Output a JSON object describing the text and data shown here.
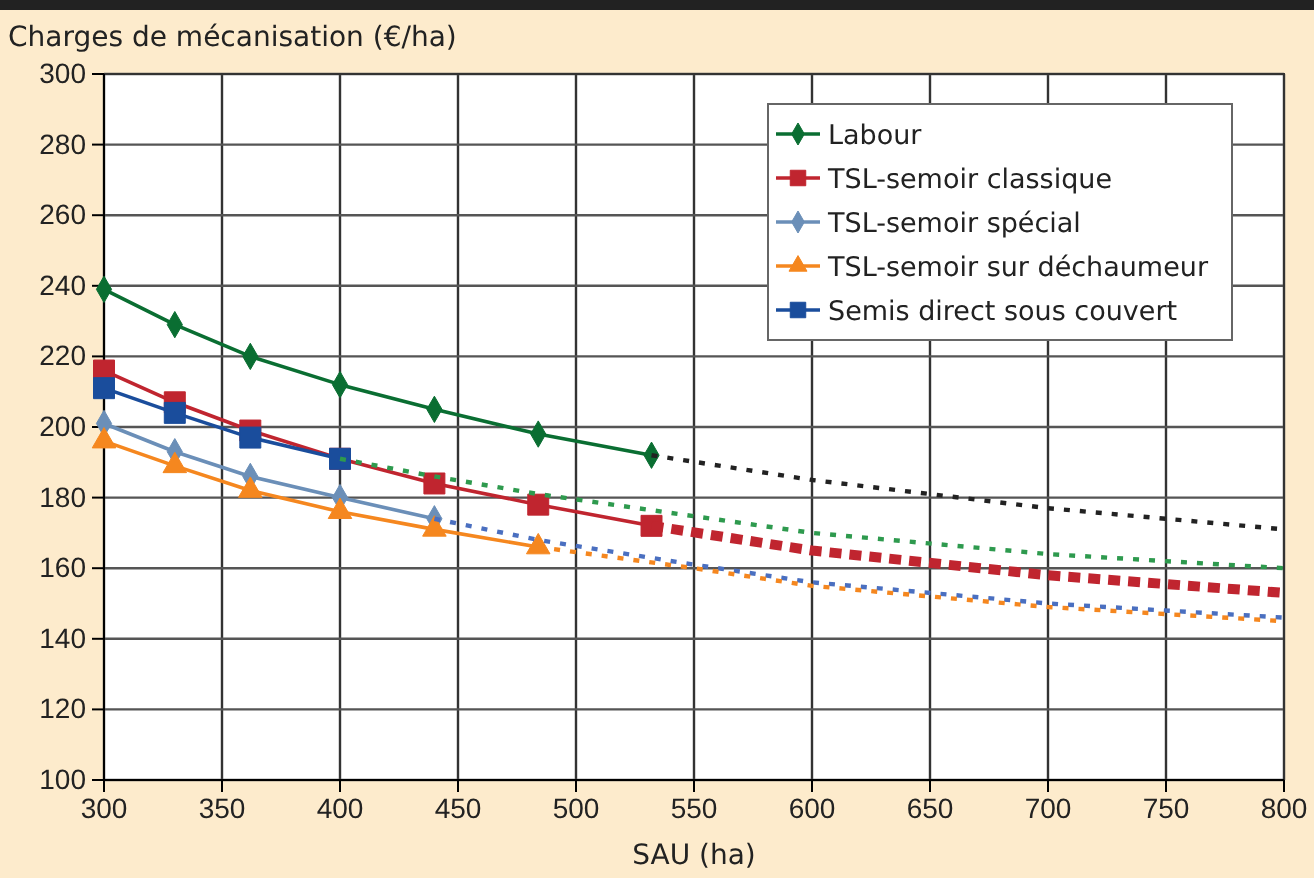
{
  "chart_data": {
    "type": "line",
    "title": "Charges de mécanisation (€/ha)",
    "xlabel": "SAU (ha)",
    "xlim": [
      300,
      800
    ],
    "ylim": [
      100,
      300
    ],
    "xticks": [
      300,
      350,
      400,
      450,
      500,
      550,
      600,
      650,
      700,
      750,
      800
    ],
    "yticks": [
      100,
      120,
      140,
      160,
      180,
      200,
      220,
      240,
      260,
      280,
      300
    ],
    "grid": true,
    "legend": "top right",
    "series": [
      {
        "name": "Labour",
        "color": "#0a6e32",
        "marker": "diamond",
        "line_style": "solid",
        "x": [
          300,
          330,
          362,
          400,
          440,
          484,
          532
        ],
        "values": [
          239,
          229,
          220,
          212,
          205,
          198,
          192
        ]
      },
      {
        "name": "TSL-semoir classique",
        "color": "#c0252f",
        "marker": "square",
        "line_style": "solid",
        "x": [
          300,
          330,
          362,
          400,
          440,
          484,
          532
        ],
        "values": [
          216,
          207,
          199,
          191,
          184,
          178,
          172
        ]
      },
      {
        "name": "TSL-semoir spécial",
        "color": "#6b8fb8",
        "marker": "diamond",
        "line_style": "solid",
        "x": [
          300,
          330,
          362,
          400,
          440
        ],
        "values": [
          201,
          193,
          186,
          180,
          174
        ]
      },
      {
        "name": "TSL-semoir sur déchaumeur",
        "color": "#f5871f",
        "marker": "triangle",
        "line_style": "solid",
        "x": [
          300,
          330,
          362,
          400,
          440,
          484
        ],
        "values": [
          196,
          189,
          182,
          176,
          171,
          166
        ]
      },
      {
        "name": "Semis direct sous couvert",
        "color": "#1a4d9c",
        "marker": "square",
        "line_style": "solid",
        "x": [
          300,
          330,
          362,
          400
        ],
        "values": [
          211,
          204,
          197,
          191
        ]
      },
      {
        "color": "#222222",
        "marker": "none",
        "line_style": "dotted",
        "x": [
          532,
          600,
          700,
          800
        ],
        "values": [
          192,
          185,
          177,
          171
        ]
      },
      {
        "color": "#2e9a4e",
        "marker": "none",
        "line_style": "dotted",
        "x": [
          400,
          440,
          484,
          600,
          700,
          800
        ],
        "values": [
          191,
          186,
          181,
          170,
          164,
          160
        ]
      },
      {
        "color": "#c0252f",
        "marker": "none",
        "line_style": "dotted-thick",
        "x": [
          532,
          600,
          700,
          800
        ],
        "values": [
          172,
          165,
          158,
          153
        ]
      },
      {
        "color": "#4a6fc0",
        "marker": "none",
        "line_style": "dotted",
        "x": [
          440,
          484,
          550,
          600,
          700,
          800
        ],
        "values": [
          174,
          168,
          161,
          156,
          150,
          146
        ]
      },
      {
        "color": "#f5871f",
        "marker": "none",
        "line_style": "dotted",
        "x": [
          484,
          550,
          600,
          700,
          800
        ],
        "values": [
          166,
          160,
          155,
          149,
          145
        ]
      }
    ]
  }
}
